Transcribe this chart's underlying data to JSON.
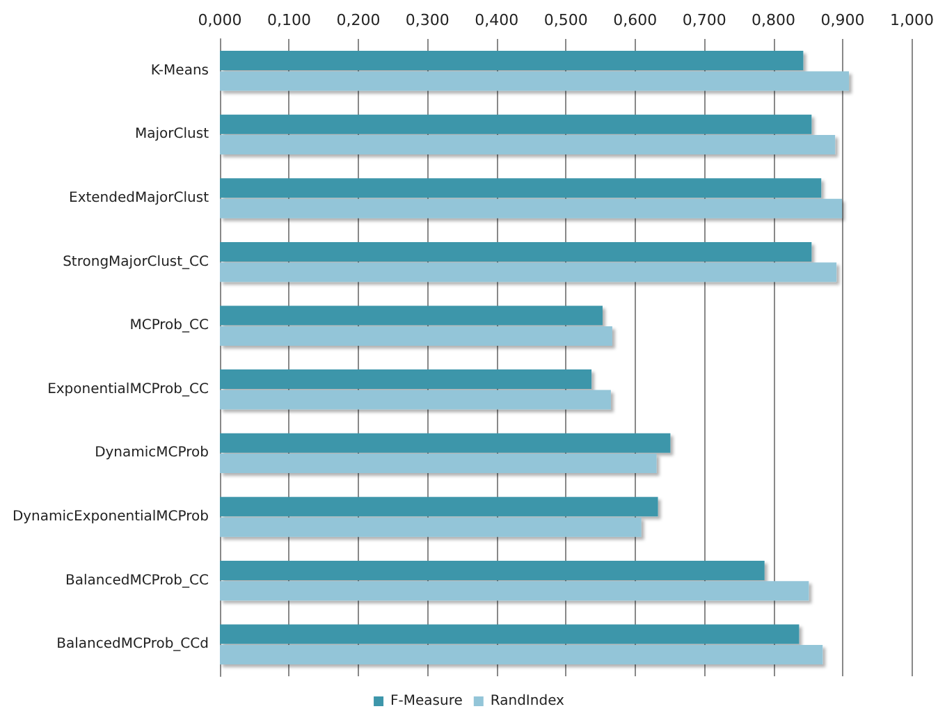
{
  "chart_data": {
    "type": "bar",
    "orientation": "horizontal",
    "categories": [
      "K-Means",
      "MajorClust",
      "ExtendedMajorClust",
      "StrongMajorClust_CC",
      "MCProb_CC",
      "ExponentialMCProb_CC",
      "DynamicMCProb",
      "DynamicExponentialMCProb",
      "BalancedMCProb_CC",
      "BalancedMCProb_CCd"
    ],
    "series": [
      {
        "name": "F-Measure",
        "color": "#3d96aa",
        "values": [
          0.843,
          0.855,
          0.869,
          0.855,
          0.553,
          0.537,
          0.651,
          0.633,
          0.787,
          0.837
        ]
      },
      {
        "name": "RandIndex",
        "color": "#93c5d8",
        "values": [
          0.909,
          0.889,
          0.899,
          0.891,
          0.567,
          0.565,
          0.631,
          0.609,
          0.851,
          0.871
        ]
      }
    ],
    "xlim": [
      0,
      1
    ],
    "xticks": [
      {
        "value": 0,
        "label": "0,000"
      },
      {
        "value": 0.1,
        "label": "0,100"
      },
      {
        "value": 0.2,
        "label": "0,200"
      },
      {
        "value": 0.3,
        "label": "0,300"
      },
      {
        "value": 0.4,
        "label": "0,400"
      },
      {
        "value": 0.5,
        "label": "0,500"
      },
      {
        "value": 0.6,
        "label": "0,600"
      },
      {
        "value": 0.7,
        "label": "0,700"
      },
      {
        "value": 0.8,
        "label": "0,800"
      },
      {
        "value": 0.9,
        "label": "0,900"
      },
      {
        "value": 1,
        "label": "1,000"
      }
    ],
    "grid": "x",
    "legend": "bottom"
  }
}
